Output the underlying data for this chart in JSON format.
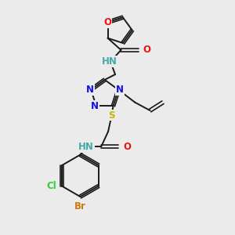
{
  "background_color": "#ebebeb",
  "colors": {
    "bond": "#1a1a1a",
    "N": "#1010ee",
    "O": "#ee1111",
    "S": "#c8b400",
    "Cl": "#33cc33",
    "Br": "#cc7711",
    "NH": "#44aaaa"
  },
  "layout": {
    "xmin": 0.0,
    "xmax": 1.0,
    "ymin": 0.0,
    "ymax": 1.0
  }
}
